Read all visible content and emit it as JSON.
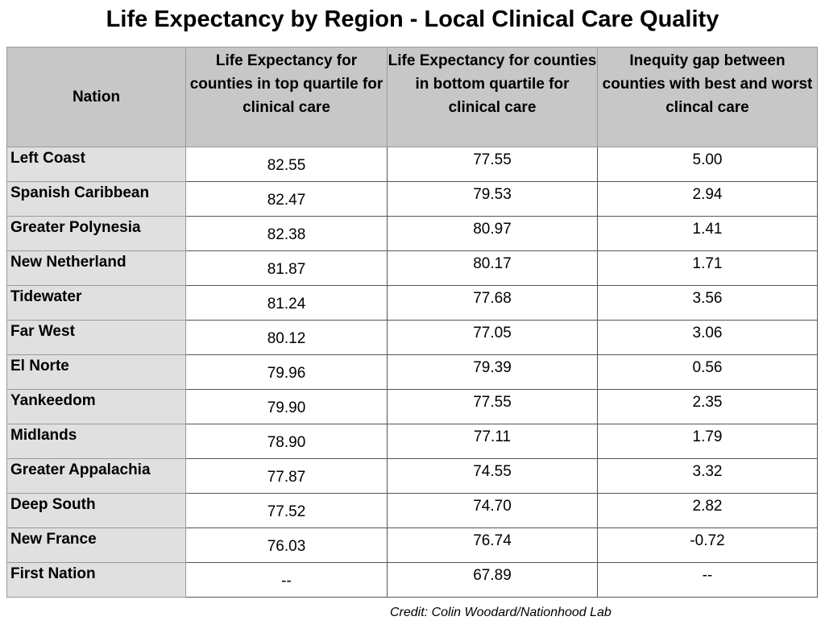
{
  "title": "Life Expectancy by Region - Local Clinical Care Quality",
  "table": {
    "header": [
      "Nation",
      "Life Expectancy for counties in top quartile for clinical care",
      "Life Expectancy for counties in bottom quartile for clinical care",
      "Inequity gap between counties with best and worst clincal care"
    ],
    "rows": [
      [
        "Left Coast",
        "82.55",
        "77.55",
        "5.00"
      ],
      [
        "Spanish Caribbean",
        "82.47",
        "79.53",
        "2.94"
      ],
      [
        "Greater Polynesia",
        "82.38",
        "80.97",
        "1.41"
      ],
      [
        "New Netherland",
        "81.87",
        "80.17",
        "1.71"
      ],
      [
        "Tidewater",
        "81.24",
        "77.68",
        "3.56"
      ],
      [
        "Far West",
        "80.12",
        "77.05",
        "3.06"
      ],
      [
        "El Norte",
        "79.96",
        "79.39",
        "0.56"
      ],
      [
        "Yankeedom",
        "79.90",
        "77.55",
        "2.35"
      ],
      [
        "Midlands",
        "78.90",
        "77.11",
        "1.79"
      ],
      [
        "Greater Appalachia",
        "77.87",
        "74.55",
        "3.32"
      ],
      [
        "Deep South",
        "77.52",
        "74.70",
        "2.82"
      ],
      [
        "New France",
        "76.03",
        "76.74",
        "-0.72"
      ],
      [
        "First Nation",
        "--",
        "67.89",
        "--"
      ]
    ]
  },
  "credit": "Credit: Colin Woodard/Nationhood Lab"
}
